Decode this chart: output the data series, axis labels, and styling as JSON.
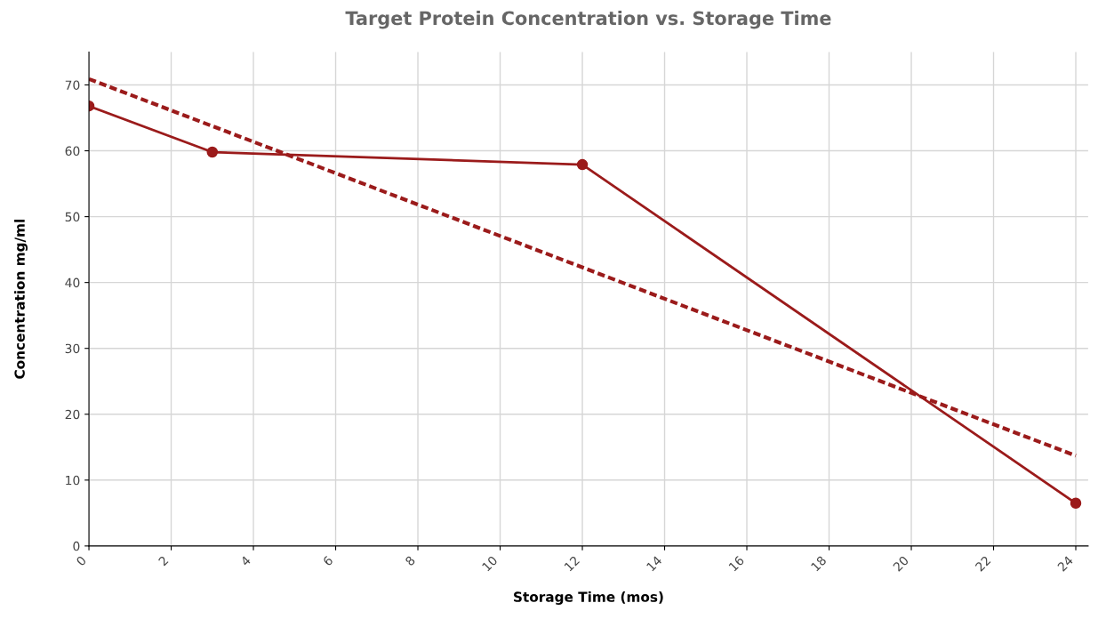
{
  "chart_data": {
    "type": "line",
    "title": "Target Protein Concentration vs. Storage Time",
    "xlabel": "Storage Time (mos)",
    "ylabel": "Concentration mg/ml",
    "series": [
      {
        "color": "#9b1b1b",
        "x": [
          0,
          3,
          12,
          24
        ],
        "values": [
          66.8,
          59.8,
          57.9,
          6.5
        ],
        "marker": "circle",
        "line_style": "solid"
      },
      {
        "color": "#9b1b1b",
        "x": [
          0,
          24
        ],
        "values": [
          70.9,
          13.7
        ],
        "marker": "none",
        "line_style": "dashed"
      }
    ],
    "xlim": [
      0,
      24.3
    ],
    "ylim": [
      0,
      75
    ],
    "xticks": [
      0,
      2,
      4,
      6,
      8,
      10,
      12,
      14,
      16,
      18,
      20,
      22,
      24
    ],
    "yticks": [
      0,
      10,
      20,
      30,
      40,
      50,
      60,
      70
    ],
    "grid": true,
    "legend": false
  }
}
